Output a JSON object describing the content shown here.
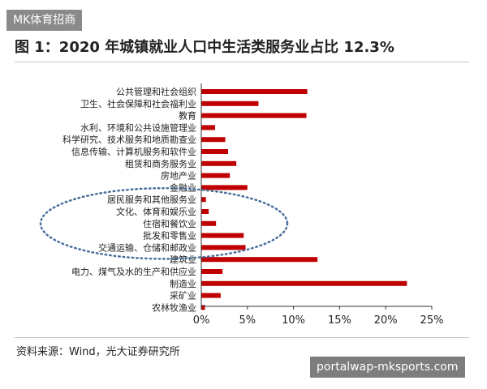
{
  "watermark": {
    "top_left": "MK体育招商",
    "bottom_right": "portalwap-mksports.com"
  },
  "title": "图 1：2020 年城镇就业人口中生活类服务业占比 12.3%",
  "source": "资料来源：Wind，光大证券研究所",
  "colors": {
    "bar": "#c00000",
    "ellipse": "#4a6f9e"
  },
  "chart_data": {
    "type": "bar",
    "orientation": "horizontal",
    "categories": [
      "公共管理和社会组织",
      "卫生、社会保障和社会福利业",
      "教育",
      "水利、环境和公共设施管理业",
      "科学研究、技术服务和地质勘查业",
      "信息传输、计算机服务和软件业",
      "租赁和商务服务业",
      "房地产业",
      "金融业",
      "居民服务和其他服务业",
      "文化、体育和娱乐业",
      "住宿和餐饮业",
      "批发和零售业",
      "交通运输、仓储和邮政业",
      "建筑业",
      "电力、煤气及水的生产和供应业",
      "制造业",
      "采矿业",
      "农林牧渔业"
    ],
    "values": [
      11.5,
      6.2,
      11.4,
      1.5,
      2.6,
      2.9,
      3.8,
      3.1,
      5.0,
      0.5,
      0.8,
      1.6,
      4.6,
      4.8,
      12.6,
      2.3,
      22.3,
      2.1,
      0.4
    ],
    "xlim": [
      0,
      25
    ],
    "xticks": [
      0,
      5,
      10,
      15,
      20,
      25
    ],
    "xtick_labels": [
      "0%",
      "5%",
      "10%",
      "15%",
      "20%",
      "25%"
    ],
    "xlabel": "",
    "ylabel": "",
    "highlight": {
      "shape": "dotted-ellipse",
      "categories": [
        "居民服务和其他服务业",
        "文化、体育和娱乐业",
        "住宿和餐饮业",
        "批发和零售业",
        "交通运输、仓储和邮政业"
      ]
    }
  }
}
